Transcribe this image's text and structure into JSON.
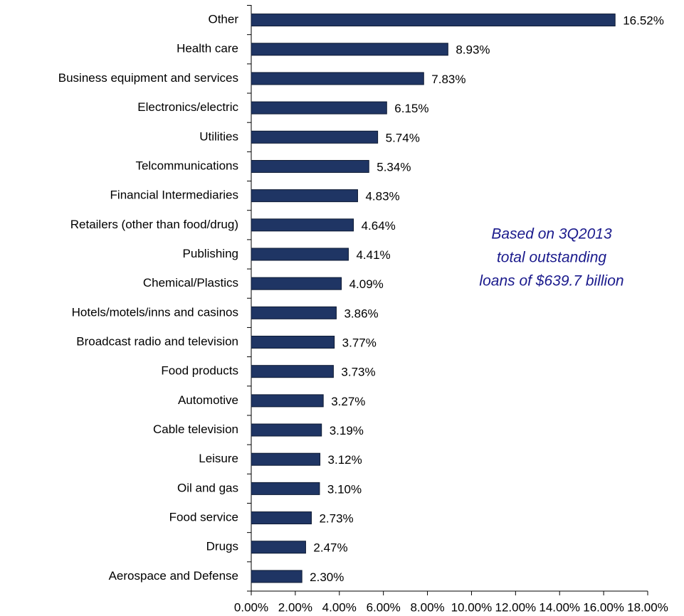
{
  "chart_data": {
    "type": "barh",
    "categories": [
      "Other",
      "Health care",
      "Business equipment and services",
      "Electronics/electric",
      "Utilities",
      "Telcommunications",
      "Financial Intermediaries",
      "Retailers (other than food/drug)",
      "Publishing",
      "Chemical/Plastics",
      "Hotels/motels/inns and casinos",
      "Broadcast radio and television",
      "Food products",
      "Automotive",
      "Cable television",
      "Leisure",
      "Oil and gas",
      "Food service",
      "Drugs",
      "Aerospace and Defense"
    ],
    "values": [
      16.52,
      8.93,
      7.83,
      6.15,
      5.74,
      5.34,
      4.83,
      4.64,
      4.41,
      4.09,
      3.86,
      3.77,
      3.73,
      3.27,
      3.19,
      3.12,
      3.1,
      2.73,
      2.47,
      2.3
    ],
    "value_labels": [
      "16.52%",
      "8.93%",
      "7.83%",
      "6.15%",
      "5.74%",
      "5.34%",
      "4.83%",
      "4.64%",
      "4.41%",
      "4.09%",
      "3.86%",
      "3.77%",
      "3.73%",
      "3.27%",
      "3.19%",
      "3.12%",
      "3.10%",
      "2.73%",
      "2.47%",
      "2.30%"
    ],
    "color": "#1f3564",
    "xlim": [
      0,
      18
    ],
    "xticks": [
      {
        "value": 0,
        "label": "0.00%"
      },
      {
        "value": 2,
        "label": "2.00%"
      },
      {
        "value": 4,
        "label": "4.00%"
      },
      {
        "value": 6,
        "label": "6.00%"
      },
      {
        "value": 8,
        "label": "8.00%"
      },
      {
        "value": 10,
        "label": "10.00%"
      },
      {
        "value": 12,
        "label": "12.00%"
      },
      {
        "value": 14,
        "label": "14.00%"
      },
      {
        "value": 16,
        "label": "16.00%"
      },
      {
        "value": 18,
        "label": "18.00%"
      }
    ],
    "annotation": [
      "Based on 3Q2013",
      "total outstanding",
      "loans of $639.7 billion"
    ],
    "annotation_color": "#1a1a8c"
  }
}
